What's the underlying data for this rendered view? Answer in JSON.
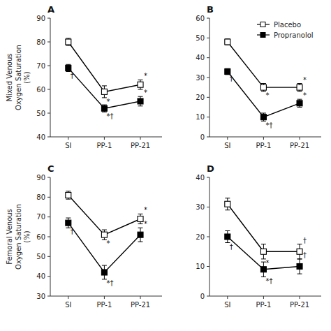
{
  "chart_data": [
    {
      "type": "line",
      "title": "A",
      "y_label": "Mixed Venous\nOxygen Saturation\n(%)",
      "categories": [
        "SI",
        "PP-1",
        "PP-21"
      ],
      "ylim": [
        40,
        90
      ],
      "yticks": [
        40,
        50,
        60,
        70,
        80,
        90
      ],
      "series": [
        {
          "name": "Placebo",
          "color": "black",
          "marker": "square-open",
          "line_style": "solid",
          "values": [
            80,
            59,
            62
          ],
          "errors": [
            1.5,
            2.5,
            2.0
          ],
          "annotations": [
            null,
            "*",
            "*"
          ]
        },
        {
          "name": "Propranolol",
          "color": "black",
          "marker": "square",
          "line_style": "solid",
          "values": [
            69,
            52,
            55
          ],
          "errors": [
            1.5,
            1.5,
            2.0
          ],
          "annotations": [
            "†",
            "*†",
            "*"
          ]
        }
      ]
    },
    {
      "type": "line",
      "title": "B",
      "categories": [
        "SI",
        "PP-1",
        "PP-21"
      ],
      "ylim": [
        0,
        60
      ],
      "yticks": [
        0,
        10,
        20,
        30,
        40,
        50,
        60
      ],
      "legend": "upper right",
      "series": [
        {
          "name": "Placebo",
          "color": "black",
          "marker": "square-open",
          "line_style": "solid",
          "values": [
            48,
            25,
            25
          ],
          "errors": [
            1.5,
            2.0,
            2.0
          ],
          "annotations": [
            null,
            "*",
            "*"
          ]
        },
        {
          "name": "Propranolol",
          "color": "black",
          "marker": "square",
          "line_style": "solid",
          "values": [
            33,
            10,
            17
          ],
          "errors": [
            1.5,
            2.0,
            2.0
          ],
          "annotations": [
            "†",
            "*†",
            "*"
          ]
        }
      ]
    },
    {
      "type": "line",
      "title": "C",
      "y_label": "Femoral Venous\nOxygen Saturation\n(%)",
      "categories": [
        "SI",
        "PP-1",
        "PP-21"
      ],
      "ylim": [
        30,
        90
      ],
      "yticks": [
        30,
        40,
        50,
        60,
        70,
        80,
        90
      ],
      "series": [
        {
          "name": "Placebo",
          "color": "black",
          "marker": "square-open",
          "line_style": "solid",
          "values": [
            81,
            61,
            69
          ],
          "errors": [
            2.0,
            2.5,
            2.5
          ],
          "annotations": [
            null,
            "*",
            "*"
          ]
        },
        {
          "name": "Propranolol",
          "color": "black",
          "marker": "square",
          "line_style": "solid",
          "values": [
            67,
            42,
            61
          ],
          "errors": [
            2.5,
            3.5,
            3.5
          ],
          "annotations": [
            "†",
            "*†",
            "*"
          ]
        }
      ]
    },
    {
      "type": "line",
      "title": "D",
      "categories": [
        "SI",
        "PP-1",
        "PP-21"
      ],
      "ylim": [
        0,
        40
      ],
      "yticks": [
        0,
        10,
        20,
        30,
        40
      ],
      "series": [
        {
          "name": "Placebo",
          "color": "black",
          "marker": "square-open",
          "line_style": "solid",
          "values": [
            31,
            15,
            15
          ],
          "errors": [
            2.0,
            2.5,
            2.5
          ],
          "annotations": [
            null,
            "*",
            "†"
          ]
        },
        {
          "name": "Propranolol",
          "color": "black",
          "marker": "square",
          "line_style": "solid",
          "values": [
            20,
            9,
            10
          ],
          "errors": [
            2.0,
            2.5,
            2.5
          ],
          "annotations": [
            "†",
            "*†",
            "†"
          ]
        }
      ]
    }
  ]
}
